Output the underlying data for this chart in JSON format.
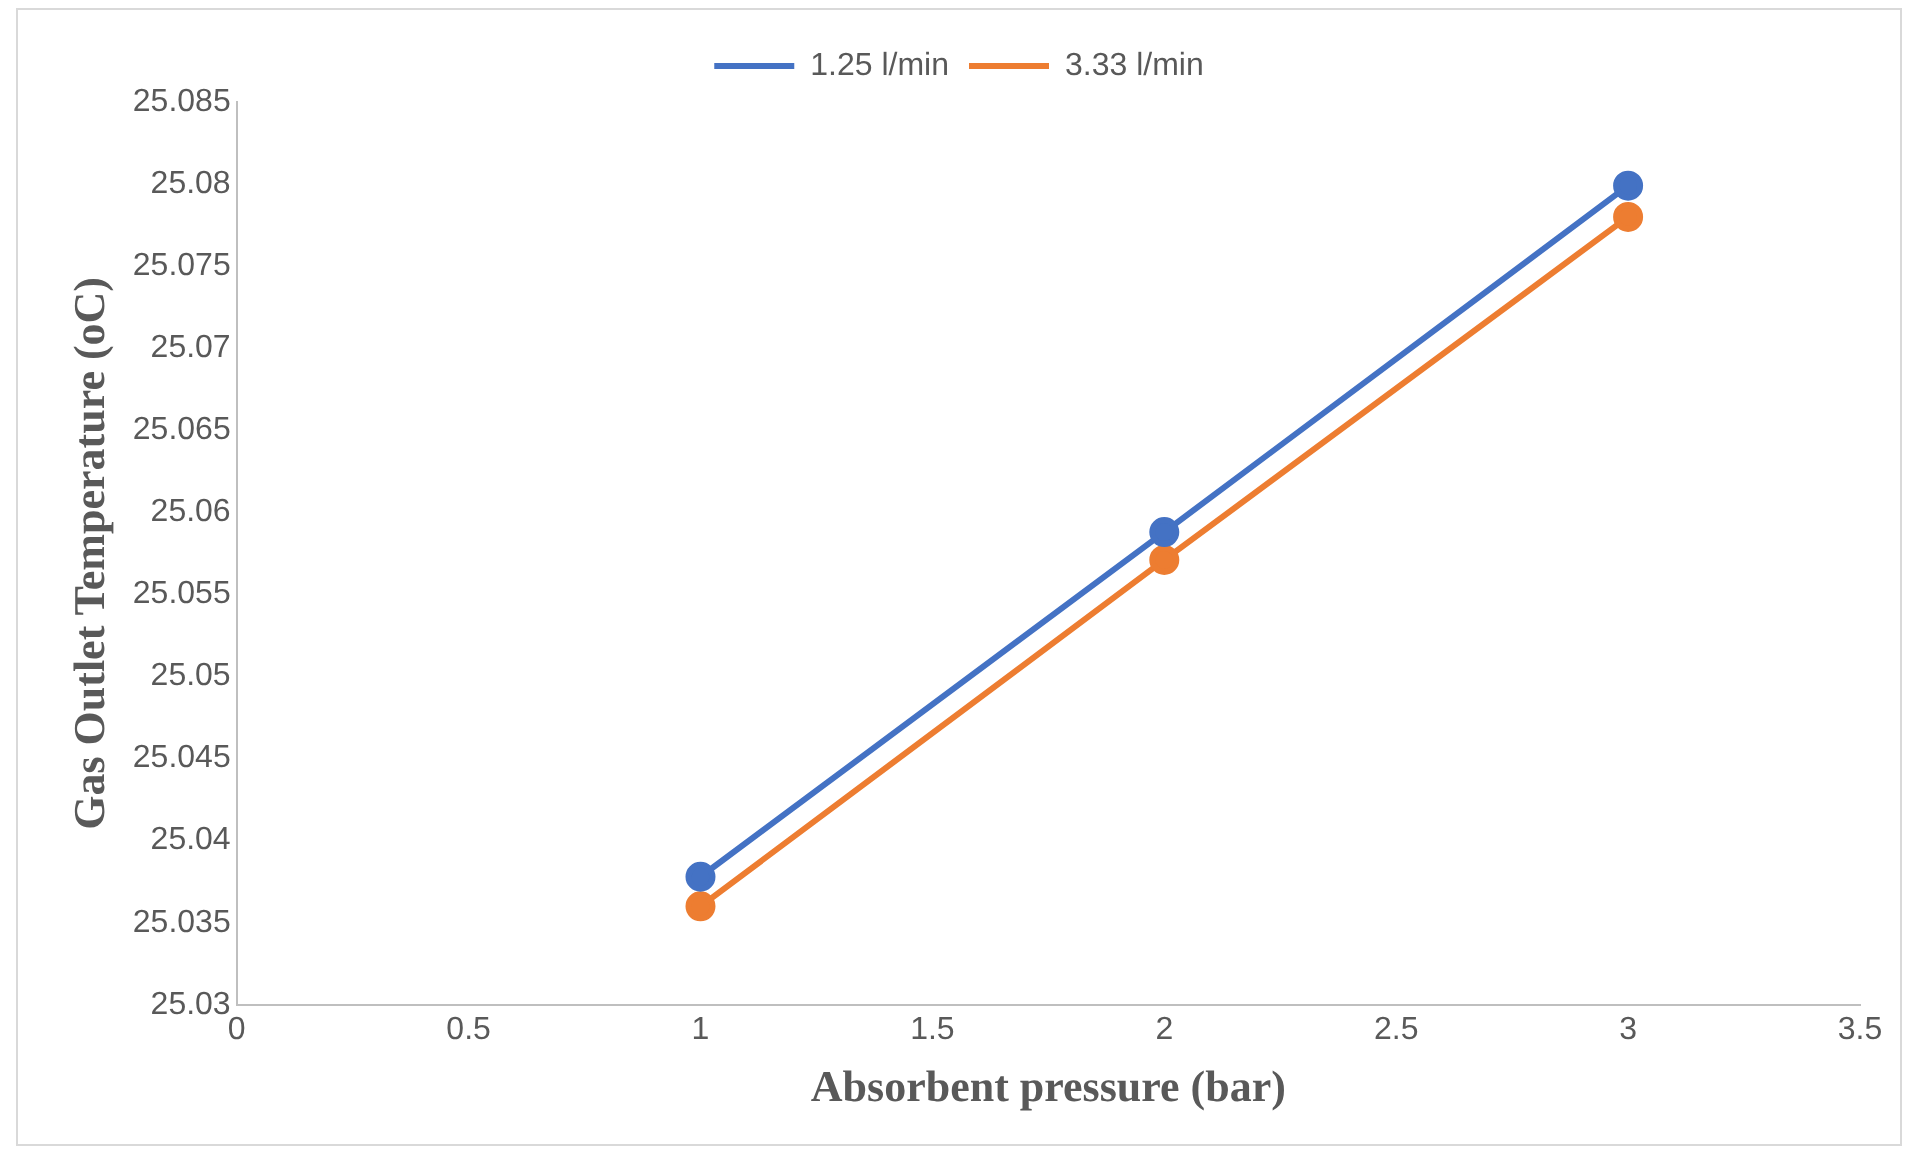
{
  "chart_data": {
    "type": "line",
    "xlabel": "Absorbent pressure (bar)",
    "ylabel": "Gas Outlet Temperature (oC)",
    "x": [
      1,
      2,
      3
    ],
    "series": [
      {
        "name": "1.25 l/min",
        "color": "#4472c4",
        "values": [
          25.0378,
          25.0588,
          25.0799
        ]
      },
      {
        "name": "3.33 l/min",
        "color": "#ed7d31",
        "values": [
          25.036,
          25.0571,
          25.078
        ]
      }
    ],
    "xlim": [
      0,
      3.5
    ],
    "xticks": [
      0,
      0.5,
      1,
      1.5,
      2,
      2.5,
      3,
      3.5
    ],
    "ylim": [
      25.03,
      25.085
    ],
    "yticks": [
      25.03,
      25.035,
      25.04,
      25.045,
      25.05,
      25.055,
      25.06,
      25.065,
      25.07,
      25.075,
      25.08,
      25.085
    ],
    "grid": false,
    "legend": "top",
    "marker": "circle",
    "line_style": "solid"
  }
}
